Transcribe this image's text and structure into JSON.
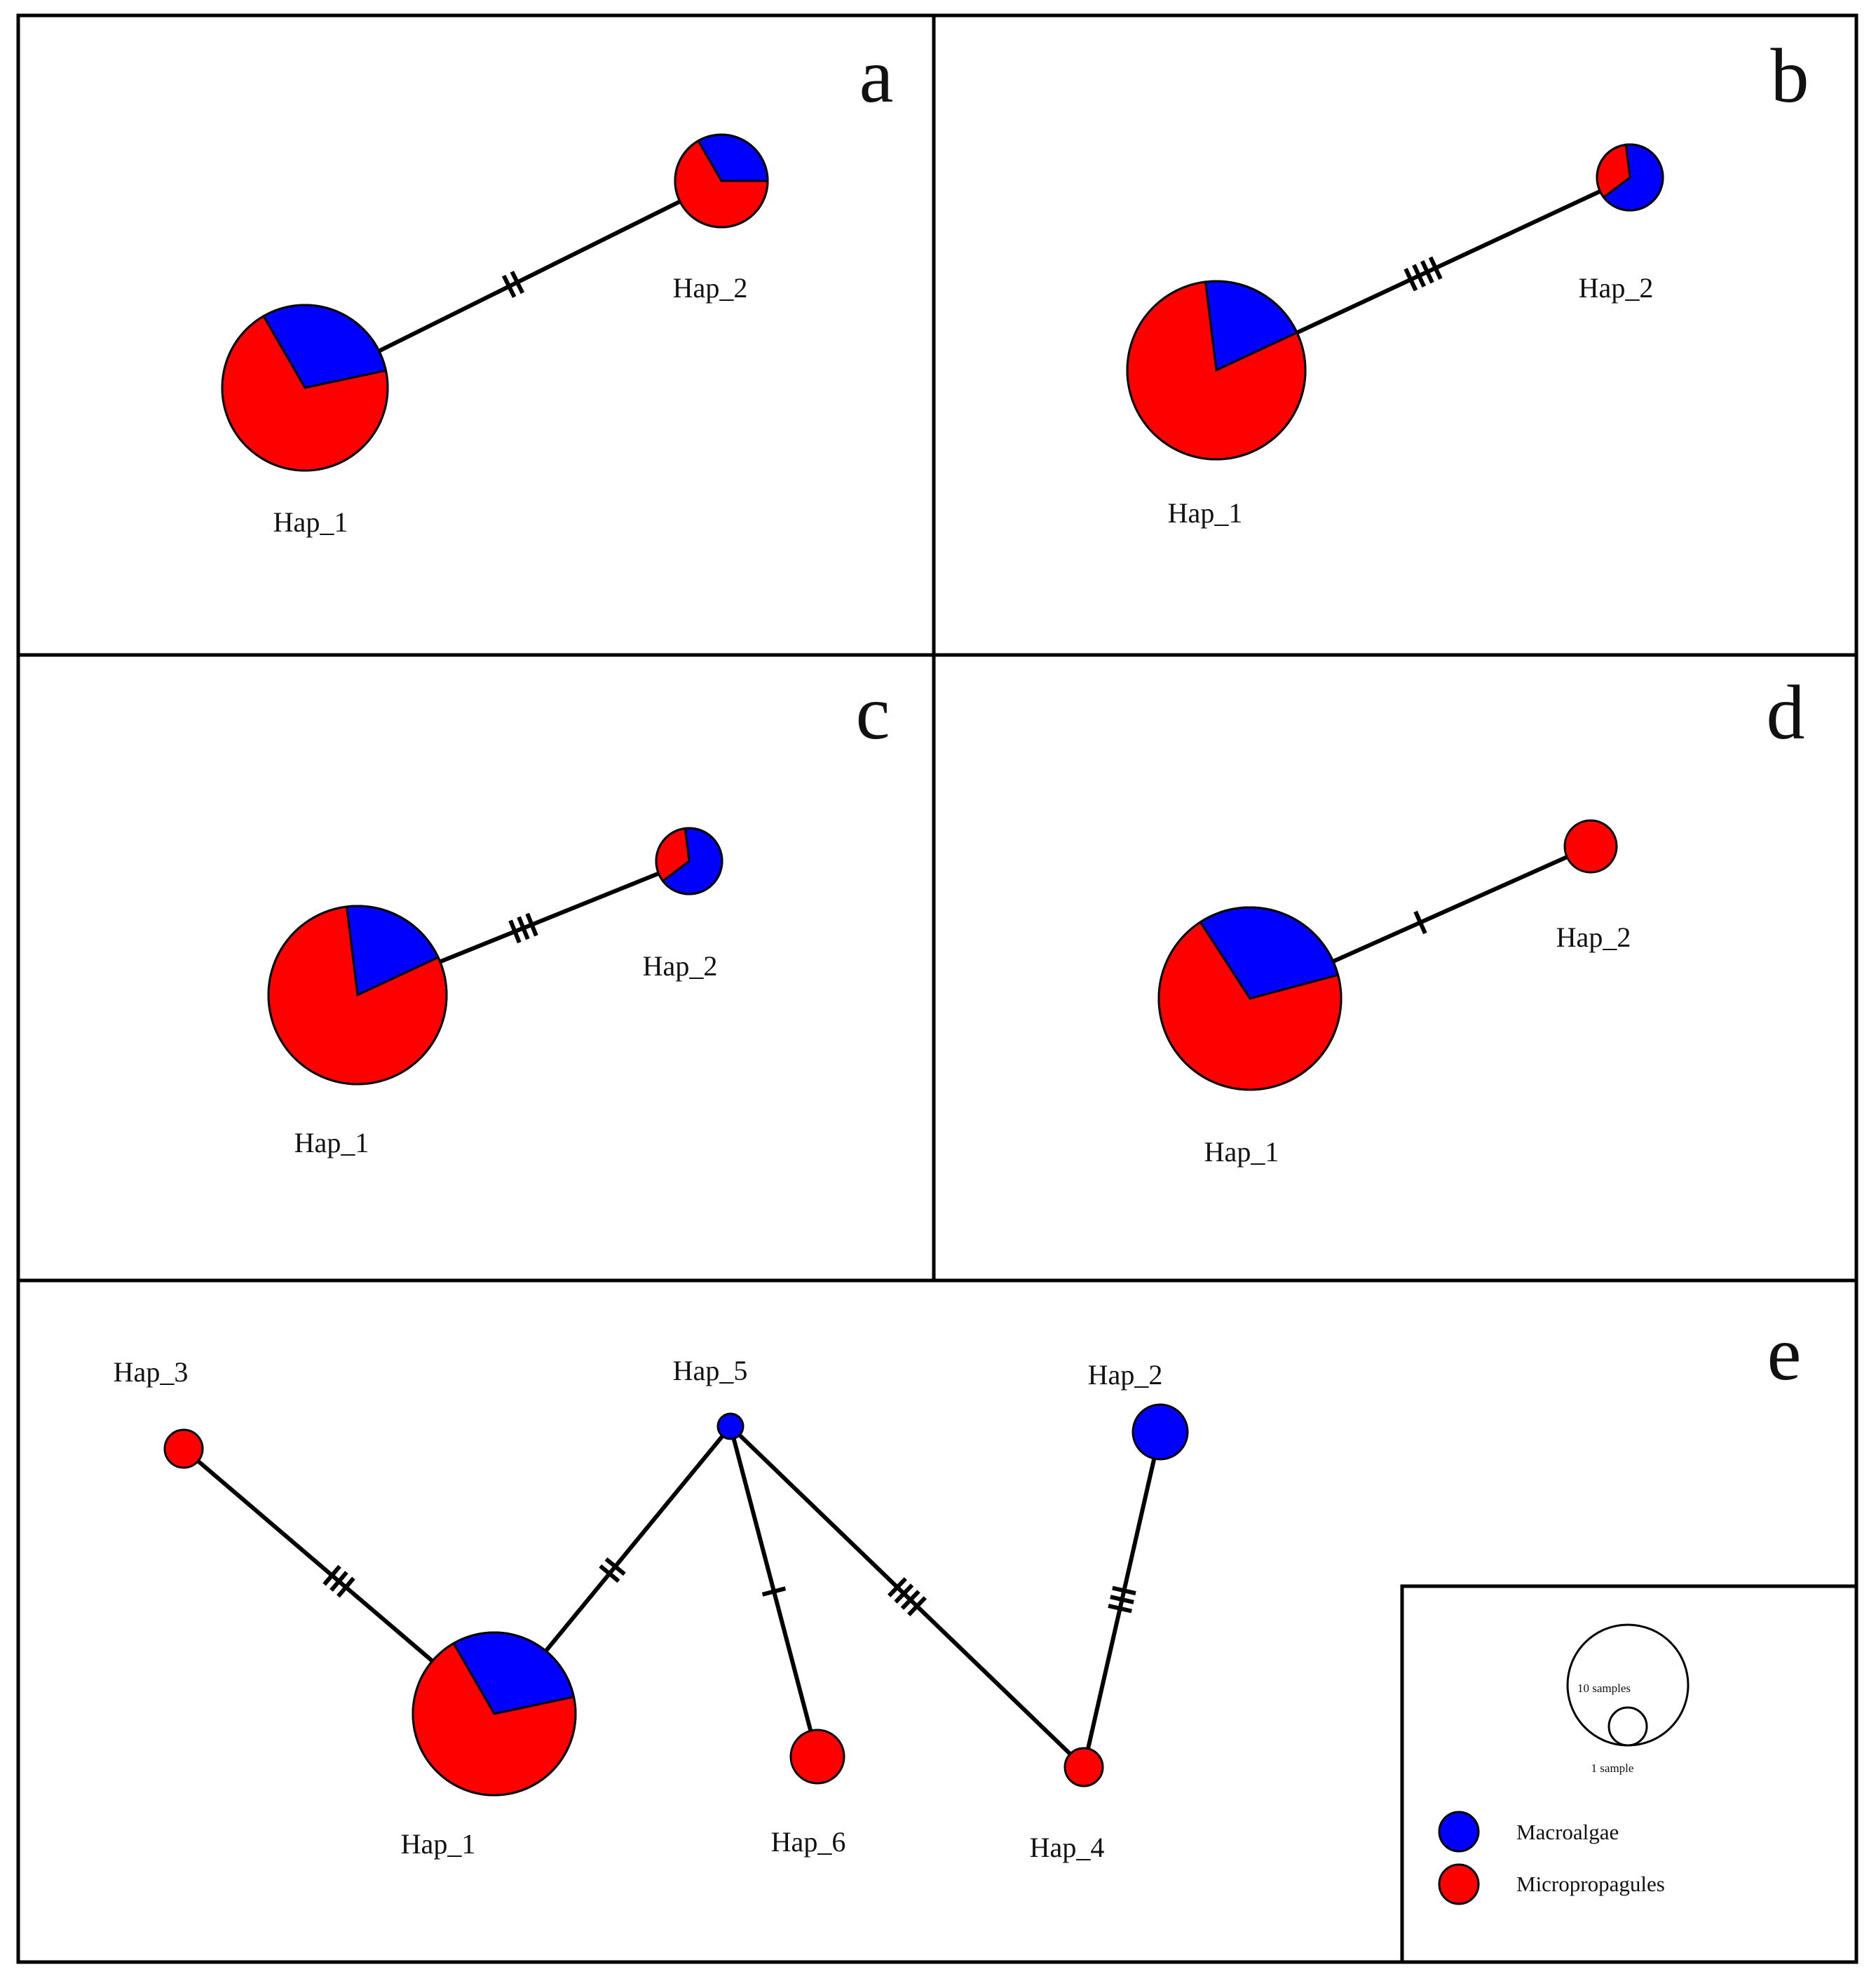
{
  "colors": {
    "Macroalgae": "#0000ff",
    "Micropropagules": "#ff0000"
  },
  "panels": [
    {
      "letter": "a",
      "nodes": [
        {
          "id": "Hap_1",
          "label": "Hap_1",
          "composition": {
            "Macroalgae": 3,
            "Micropropagules": 7
          }
        },
        {
          "id": "Hap_2",
          "label": "Hap_2",
          "composition": {
            "Macroalgae": 1,
            "Micropropagules": 2
          }
        }
      ],
      "edges": [
        {
          "from": "Hap_1",
          "to": "Hap_2",
          "mutations": 2
        }
      ]
    },
    {
      "letter": "b",
      "nodes": [
        {
          "id": "Hap_1",
          "label": "Hap_1",
          "composition": {
            "Macroalgae": 2,
            "Micropropagules": 8
          }
        },
        {
          "id": "Hap_2",
          "label": "Hap_2",
          "composition": {
            "Macroalgae": 2,
            "Micropropagules": 1
          }
        }
      ],
      "edges": [
        {
          "from": "Hap_1",
          "to": "Hap_2",
          "mutations": 4
        }
      ]
    },
    {
      "letter": "c",
      "nodes": [
        {
          "id": "Hap_1",
          "label": "Hap_1",
          "composition": {
            "Macroalgae": 2,
            "Micropropagules": 8
          }
        },
        {
          "id": "Hap_2",
          "label": "Hap_2",
          "composition": {
            "Macroalgae": 2,
            "Micropropagules": 1
          }
        }
      ],
      "edges": [
        {
          "from": "Hap_1",
          "to": "Hap_2",
          "mutations": 3
        }
      ]
    },
    {
      "letter": "d",
      "nodes": [
        {
          "id": "Hap_1",
          "label": "Hap_1",
          "composition": {
            "Macroalgae": 3,
            "Micropropagules": 7
          }
        },
        {
          "id": "Hap_2",
          "label": "Hap_2",
          "composition": {
            "Macroalgae": 0,
            "Micropropagules": 1
          }
        }
      ],
      "edges": [
        {
          "from": "Hap_1",
          "to": "Hap_2",
          "mutations": 1
        }
      ]
    },
    {
      "letter": "e",
      "nodes": [
        {
          "id": "Hap_1",
          "label": "Hap_1",
          "composition": {
            "Macroalgae": 3,
            "Micropropagules": 7
          }
        },
        {
          "id": "Hap_2",
          "label": "Hap_2",
          "composition": {
            "Macroalgae": 1,
            "Micropropagules": 0
          }
        },
        {
          "id": "Hap_3",
          "label": "Hap_3",
          "composition": {
            "Macroalgae": 0,
            "Micropropagules": 1
          }
        },
        {
          "id": "Hap_4",
          "label": "Hap_4",
          "composition": {
            "Macroalgae": 0,
            "Micropropagules": 1
          }
        },
        {
          "id": "Hap_5",
          "label": "Hap_5",
          "composition": {
            "Macroalgae": 1,
            "Micropropagules": 0
          }
        },
        {
          "id": "Hap_6",
          "label": "Hap_6",
          "composition": {
            "Macroalgae": 0,
            "Micropropagules": 1
          }
        }
      ],
      "edges": [
        {
          "from": "Hap_3",
          "to": "Hap_1",
          "mutations": 3
        },
        {
          "from": "Hap_1",
          "to": "Hap_5",
          "mutations": 2
        },
        {
          "from": "Hap_5",
          "to": "Hap_6",
          "mutations": 1
        },
        {
          "from": "Hap_5",
          "to": "Hap_4",
          "mutations": 4
        },
        {
          "from": "Hap_4",
          "to": "Hap_2",
          "mutations": 3
        }
      ]
    }
  ],
  "legend": {
    "size_large_label": "10 samples",
    "size_small_label": "1 sample",
    "entries": [
      {
        "key": "Macroalgae",
        "label": "Macroalgae"
      },
      {
        "key": "Micropropagules",
        "label": "Micropropagules"
      }
    ]
  }
}
